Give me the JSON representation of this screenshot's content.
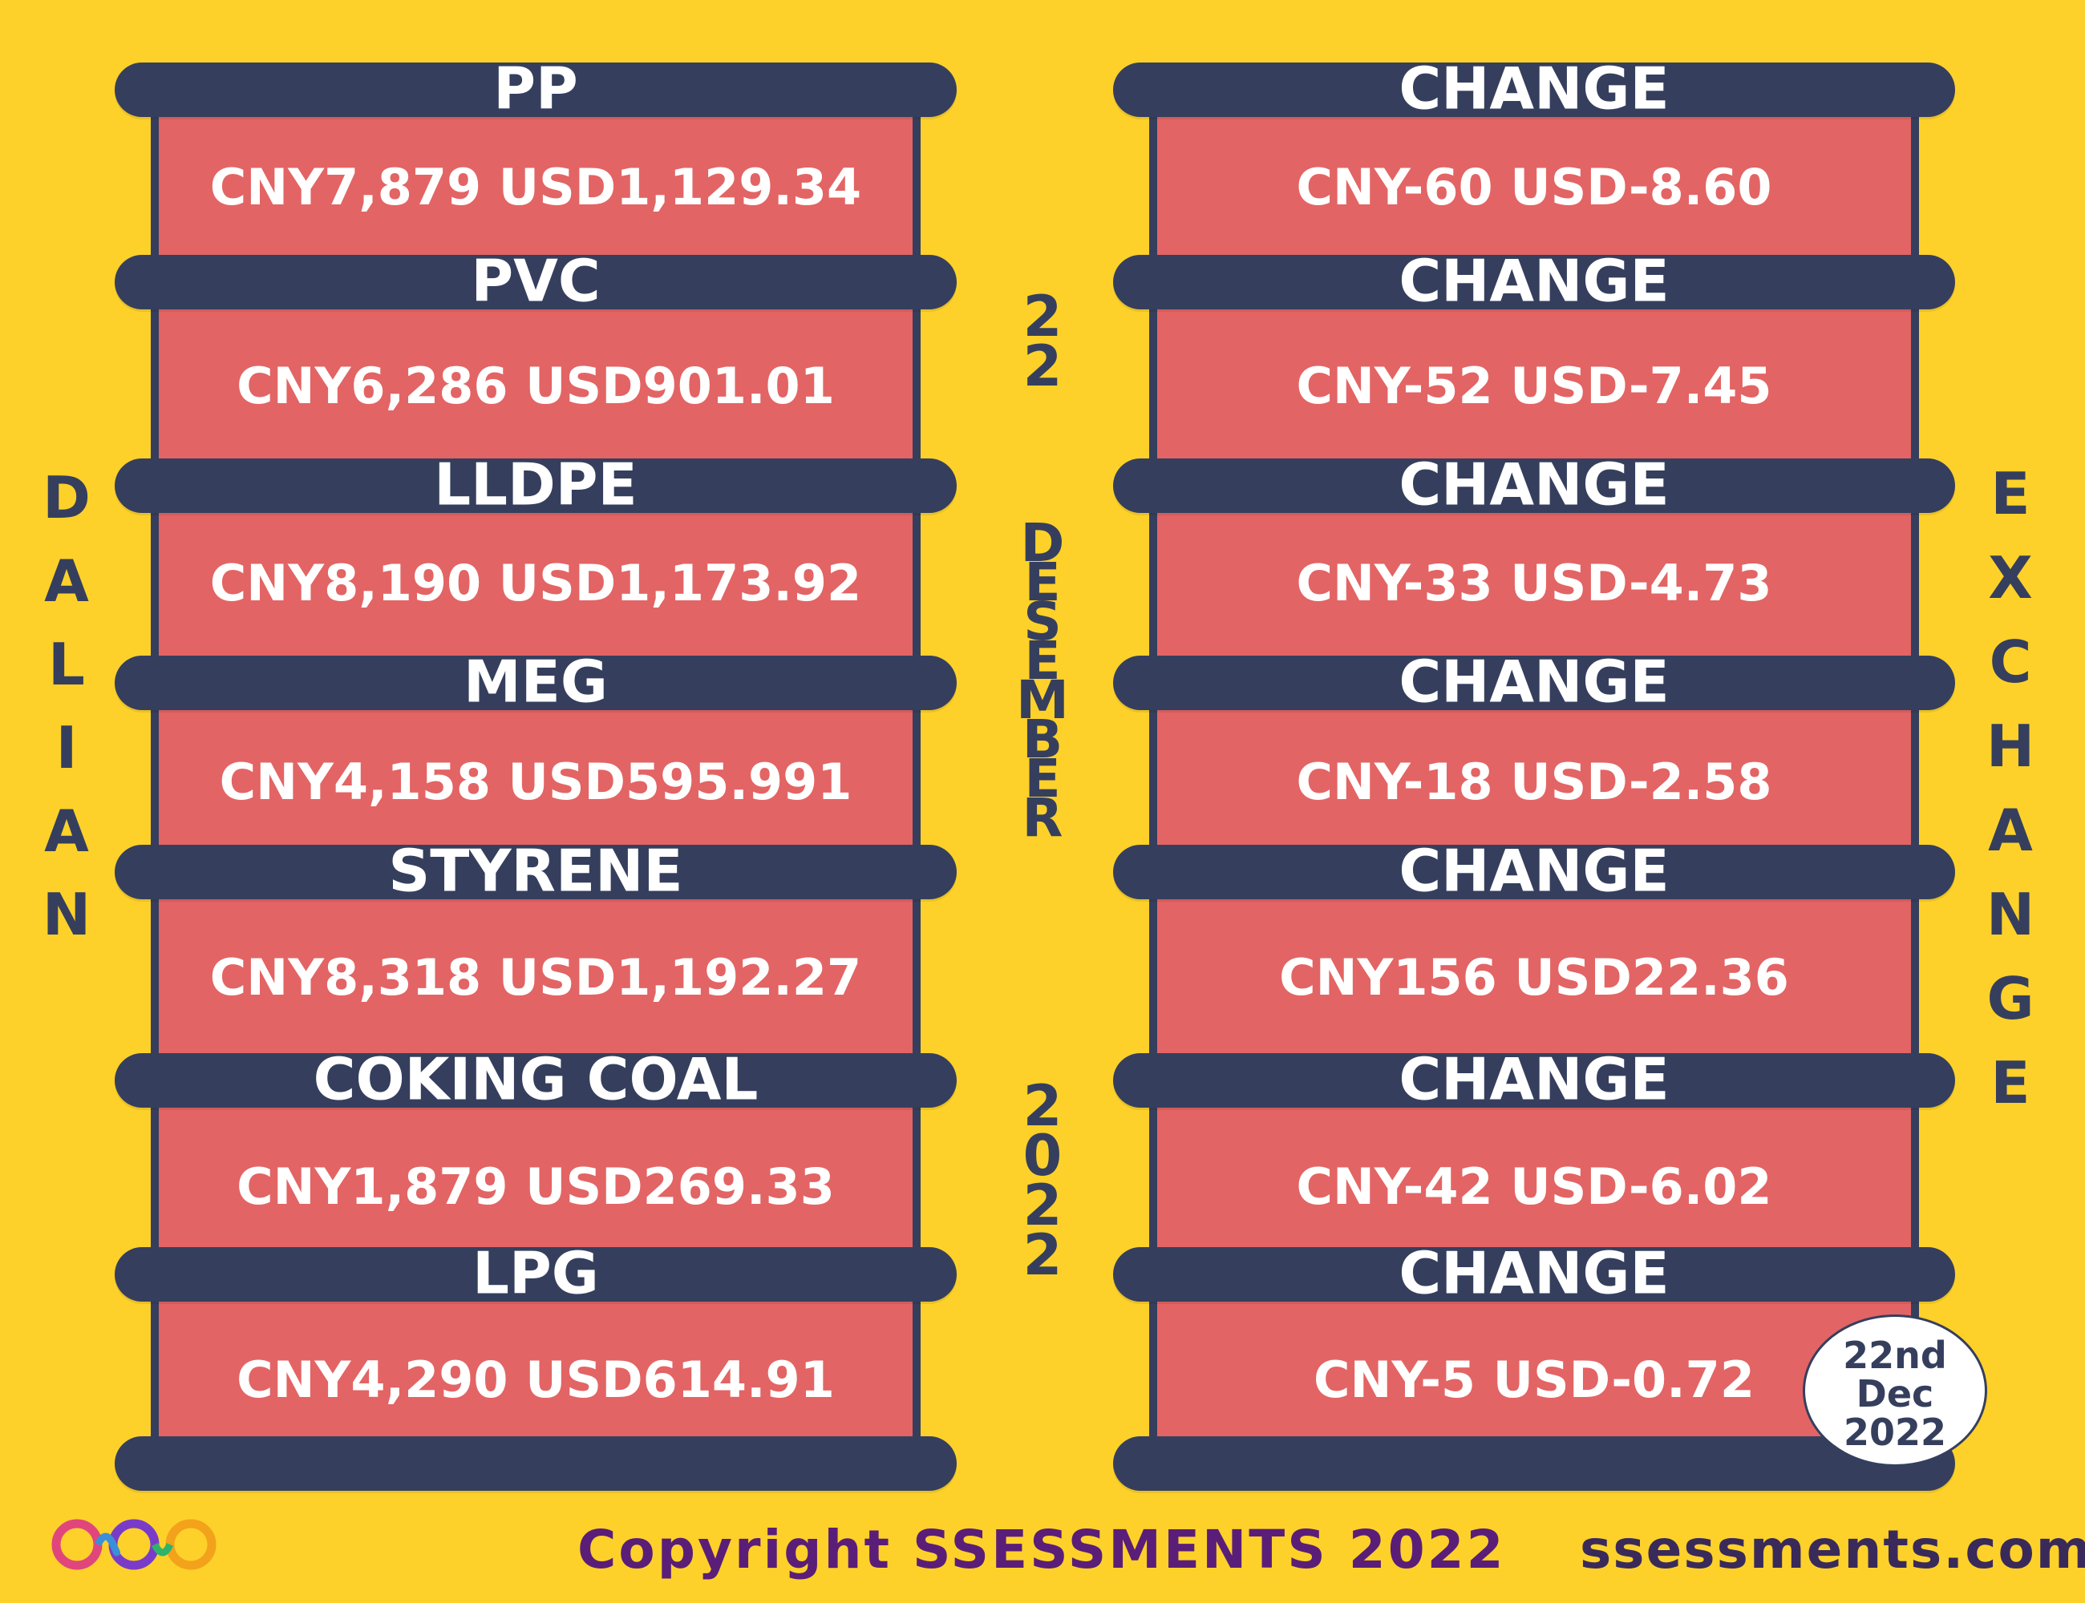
{
  "side_left": [
    "D",
    "A",
    "L",
    "I",
    "A",
    "N"
  ],
  "side_right": [
    "E",
    "X",
    "C",
    "H",
    "A",
    "N",
    "G",
    "E"
  ],
  "center": {
    "day": [
      "2",
      "2"
    ],
    "month": [
      "D",
      "E",
      "S",
      "E",
      "M",
      "B",
      "E",
      "R"
    ],
    "year": [
      "2",
      "0",
      "2",
      "2"
    ]
  },
  "commodities": [
    {
      "name": "PP",
      "value": "CNY7,879 USD1,129.34"
    },
    {
      "name": "PVC",
      "value": "CNY6,286 USD901.01"
    },
    {
      "name": "LLDPE",
      "value": "CNY8,190 USD1,173.92"
    },
    {
      "name": "MEG",
      "value": "CNY4,158 USD595.991"
    },
    {
      "name": "STYRENE",
      "value": "CNY8,318 USD1,192.27"
    },
    {
      "name": "COKING COAL",
      "value": "CNY1,879 USD269.33"
    },
    {
      "name": "LPG",
      "value": "CNY4,290 USD614.91"
    }
  ],
  "changes": [
    {
      "label": "CHANGE",
      "value": "CNY-60 USD-8.60"
    },
    {
      "label": "CHANGE",
      "value": "CNY-52 USD-7.45"
    },
    {
      "label": "CHANGE",
      "value": "CNY-33 USD-4.73"
    },
    {
      "label": "CHANGE",
      "value": "CNY-18 USD-2.58"
    },
    {
      "label": "CHANGE",
      "value": "CNY156 USD22.36"
    },
    {
      "label": "CHANGE",
      "value": "CNY-42 USD-6.02"
    },
    {
      "label": "CHANGE",
      "value": "CNY-5 USD-0.72"
    }
  ],
  "date_badge": {
    "line1": "22nd",
    "line2": "Dec",
    "line3": "2022"
  },
  "footer": {
    "copyright": "Copyright SSESSMENTS 2022",
    "website": "ssessments.com"
  },
  "colors": {
    "background": "#FDD12A",
    "bar": "#353F5D",
    "box": "#E36464",
    "text_light": "#FFFFFF"
  },
  "logo_icon": "infinity-circles-logo"
}
